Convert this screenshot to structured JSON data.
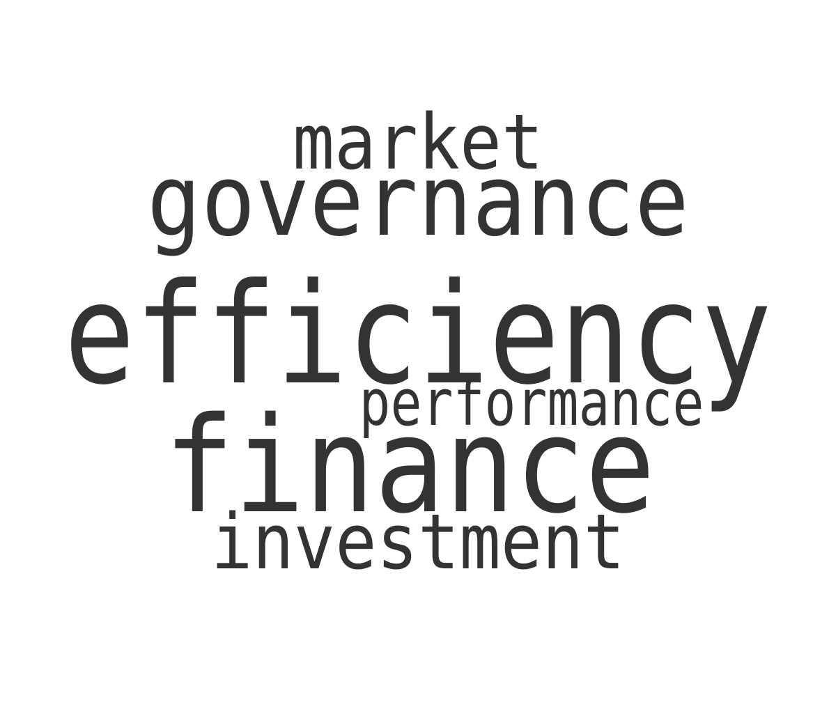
{
  "words": [
    {
      "text": "efficiency",
      "color": "#8dd546"
    },
    {
      "text": "finance",
      "color": "#33638d"
    },
    {
      "text": "governance",
      "color": "#52c569"
    },
    {
      "text": "investment",
      "color": "#297b8e"
    },
    {
      "text": "market",
      "color": "#46bf6e"
    },
    {
      "text": "performance",
      "color": "#23a883"
    }
  ]
}
